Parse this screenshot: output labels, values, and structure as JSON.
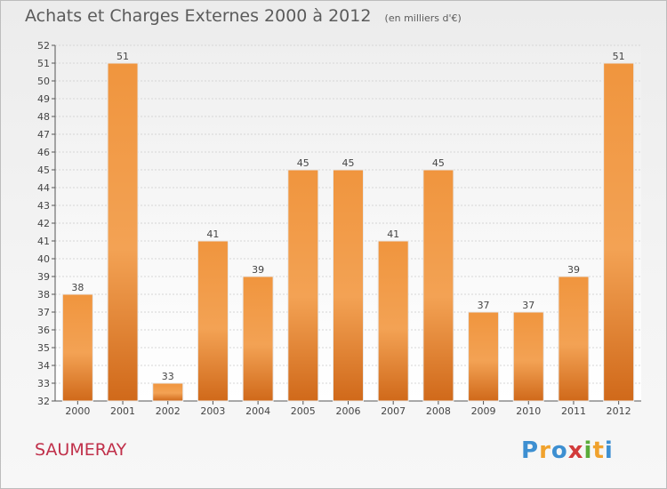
{
  "chart_data": {
    "type": "bar",
    "title": "Achats et Charges Externes 2000 à 2012",
    "subtitle": "(en milliers d'€)",
    "categories": [
      "2000",
      "2001",
      "2002",
      "2003",
      "2004",
      "2005",
      "2006",
      "2007",
      "2008",
      "2009",
      "2010",
      "2011",
      "2012"
    ],
    "values": [
      38,
      51,
      33,
      41,
      39,
      45,
      45,
      41,
      45,
      37,
      37,
      39,
      51
    ],
    "ylim": [
      32,
      52
    ],
    "yticks": [
      32,
      33,
      34,
      35,
      36,
      37,
      38,
      39,
      40,
      41,
      42,
      43,
      44,
      45,
      46,
      47,
      48,
      49,
      50,
      51,
      52
    ],
    "grid": true,
    "xlabel": "",
    "ylabel": "",
    "bar_color": "#f0953e"
  },
  "footer": {
    "commune": "SAUMERAY",
    "logo_letters": [
      "P",
      "r",
      "o",
      "x",
      "i",
      "t",
      "i"
    ],
    "logo_colors": [
      "#3d8fd1",
      "#f0a22d",
      "#3d8fd1",
      "#d23b3b",
      "#5aab3a",
      "#f0a22d",
      "#3d8fd1"
    ]
  }
}
